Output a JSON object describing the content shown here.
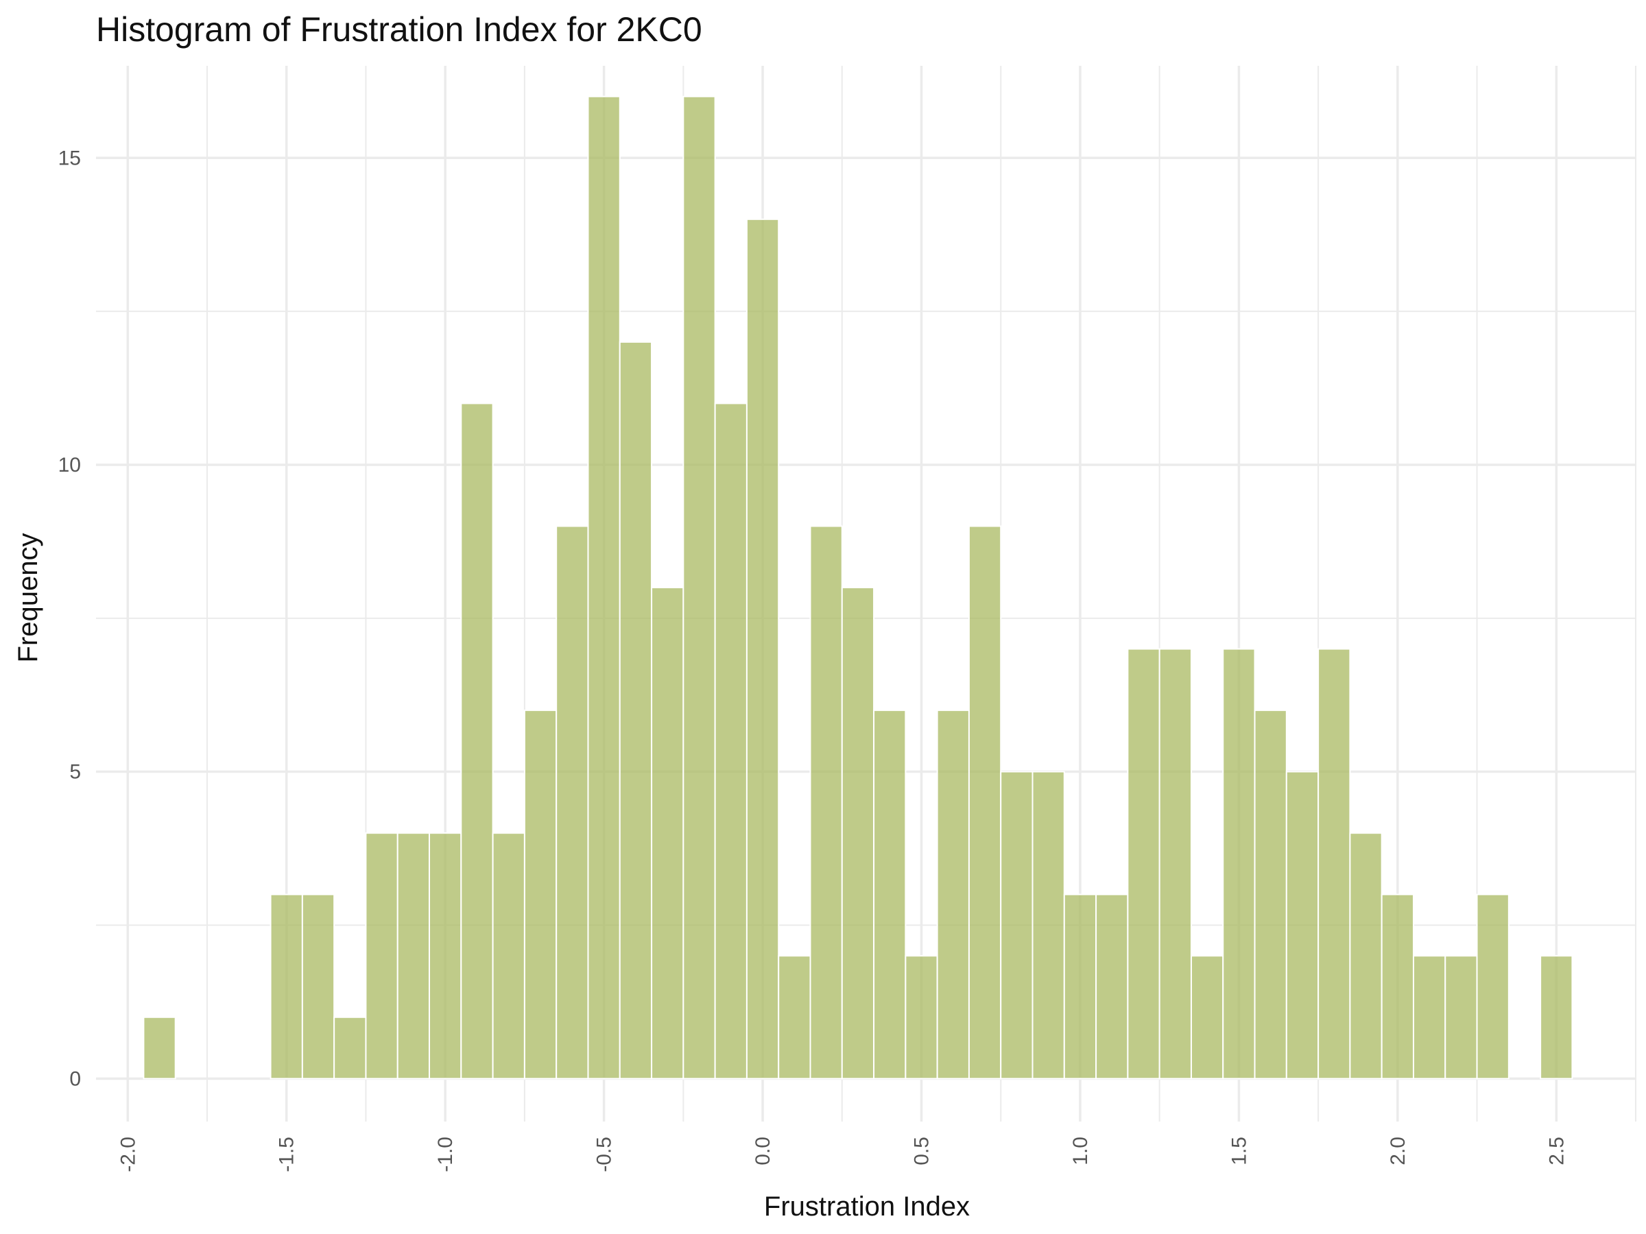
{
  "chart_data": {
    "type": "bar",
    "title": "Histogram of Frustration Index for 2KC0",
    "xlabel": "Frustration Index",
    "ylabel": "Frequency",
    "xlim": [
      -2.1,
      2.75
    ],
    "ylim": [
      -0.7,
      16.5
    ],
    "x_ticks": [
      -2.0,
      -1.5,
      -1.0,
      -0.5,
      0.0,
      0.5,
      1.0,
      1.5,
      2.0,
      2.5
    ],
    "x_tick_labels": [
      "-2.0",
      "-1.5",
      "-1.0",
      "-0.5",
      "0.0",
      "0.5",
      "1.0",
      "1.5",
      "2.0",
      "2.5"
    ],
    "y_ticks": [
      0,
      5,
      10,
      15
    ],
    "y_tick_labels": [
      "0",
      "5",
      "10",
      "15"
    ],
    "grid": true,
    "bin_width": 0.1,
    "bar_color": "#a9b961",
    "bar_outline": "#ffffff",
    "grid_color": "#ebebeb",
    "bins": [
      {
        "x": -1.9,
        "count": 1
      },
      {
        "x": -1.8,
        "count": 0
      },
      {
        "x": -1.7,
        "count": 0
      },
      {
        "x": -1.6,
        "count": 0
      },
      {
        "x": -1.5,
        "count": 3
      },
      {
        "x": -1.4,
        "count": 3
      },
      {
        "x": -1.3,
        "count": 1
      },
      {
        "x": -1.2,
        "count": 4
      },
      {
        "x": -1.1,
        "count": 4
      },
      {
        "x": -1.0,
        "count": 4
      },
      {
        "x": -0.9,
        "count": 11
      },
      {
        "x": -0.8,
        "count": 4
      },
      {
        "x": -0.7,
        "count": 6
      },
      {
        "x": -0.6,
        "count": 9
      },
      {
        "x": -0.5,
        "count": 16
      },
      {
        "x": -0.4,
        "count": 12
      },
      {
        "x": -0.3,
        "count": 8
      },
      {
        "x": -0.2,
        "count": 16
      },
      {
        "x": -0.1,
        "count": 11
      },
      {
        "x": 0.0,
        "count": 14
      },
      {
        "x": 0.1,
        "count": 2
      },
      {
        "x": 0.2,
        "count": 9
      },
      {
        "x": 0.3,
        "count": 8
      },
      {
        "x": 0.4,
        "count": 6
      },
      {
        "x": 0.5,
        "count": 2
      },
      {
        "x": 0.6,
        "count": 6
      },
      {
        "x": 0.7,
        "count": 9
      },
      {
        "x": 0.8,
        "count": 5
      },
      {
        "x": 0.9,
        "count": 5
      },
      {
        "x": 1.0,
        "count": 3
      },
      {
        "x": 1.1,
        "count": 3
      },
      {
        "x": 1.2,
        "count": 7
      },
      {
        "x": 1.3,
        "count": 7
      },
      {
        "x": 1.4,
        "count": 2
      },
      {
        "x": 1.5,
        "count": 7
      },
      {
        "x": 1.6,
        "count": 6
      },
      {
        "x": 1.7,
        "count": 5
      },
      {
        "x": 1.8,
        "count": 7
      },
      {
        "x": 1.9,
        "count": 4
      },
      {
        "x": 2.0,
        "count": 3
      },
      {
        "x": 2.1,
        "count": 2
      },
      {
        "x": 2.2,
        "count": 2
      },
      {
        "x": 2.3,
        "count": 3
      },
      {
        "x": 2.4,
        "count": 0
      },
      {
        "x": 2.5,
        "count": 2
      }
    ]
  }
}
